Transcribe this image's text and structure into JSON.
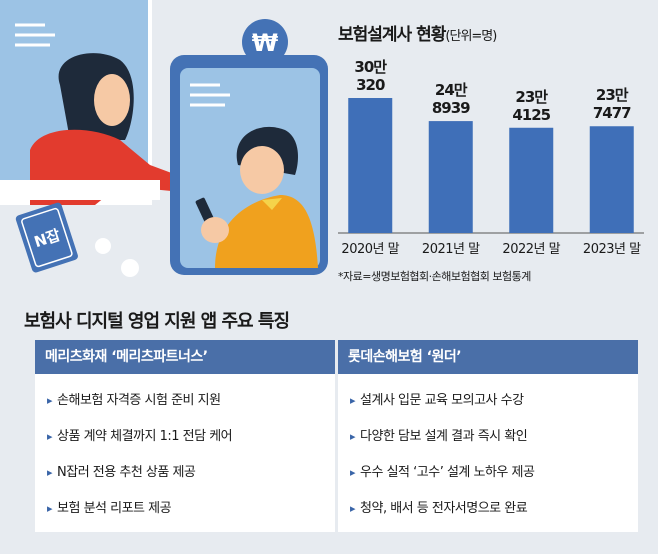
{
  "illustration": {
    "badge_text": "N잡",
    "currency_symbol": "₩"
  },
  "chart": {
    "title": "보험설계사 현황",
    "unit": "(단위=명)",
    "source": "*자료=생명보험협회·손해보험협회 보험통계"
  },
  "chart_data": {
    "type": "bar",
    "title": "보험설계사 현황",
    "unit": "명",
    "categories": [
      "2020년 말",
      "2021년 말",
      "2022년 말",
      "2023년 말"
    ],
    "values": [
      300320,
      248939,
      234125,
      237477
    ],
    "data_labels": [
      [
        "30만",
        "320"
      ],
      [
        "24만",
        "8939"
      ],
      [
        "23만",
        "4125"
      ],
      [
        "23만",
        "7477"
      ]
    ],
    "bar_color": "#3f6fb8",
    "grid": false
  },
  "features": {
    "title": "보험사 디지털 영업 지원 앱 주요 특징",
    "left": {
      "heading": "메리츠화재 ‘메리츠파트너스’",
      "items": [
        "손해보험 자격증 시험 준비 지원",
        "상품 계약 체결까지 1:1 전담 케어",
        "N잡러 전용 추천 상품 제공",
        "보험 분석 리포트 제공"
      ]
    },
    "right": {
      "heading": "롯데손해보험 ‘원더’",
      "items": [
        "설계사 입문 교육 모의고사 수강",
        "다양한 담보 설계 결과 즉시 확인",
        "우수 실적 ‘고수’ 설계 노하우 제공",
        "청약, 배서 등 전자서명으로 완료"
      ]
    }
  }
}
